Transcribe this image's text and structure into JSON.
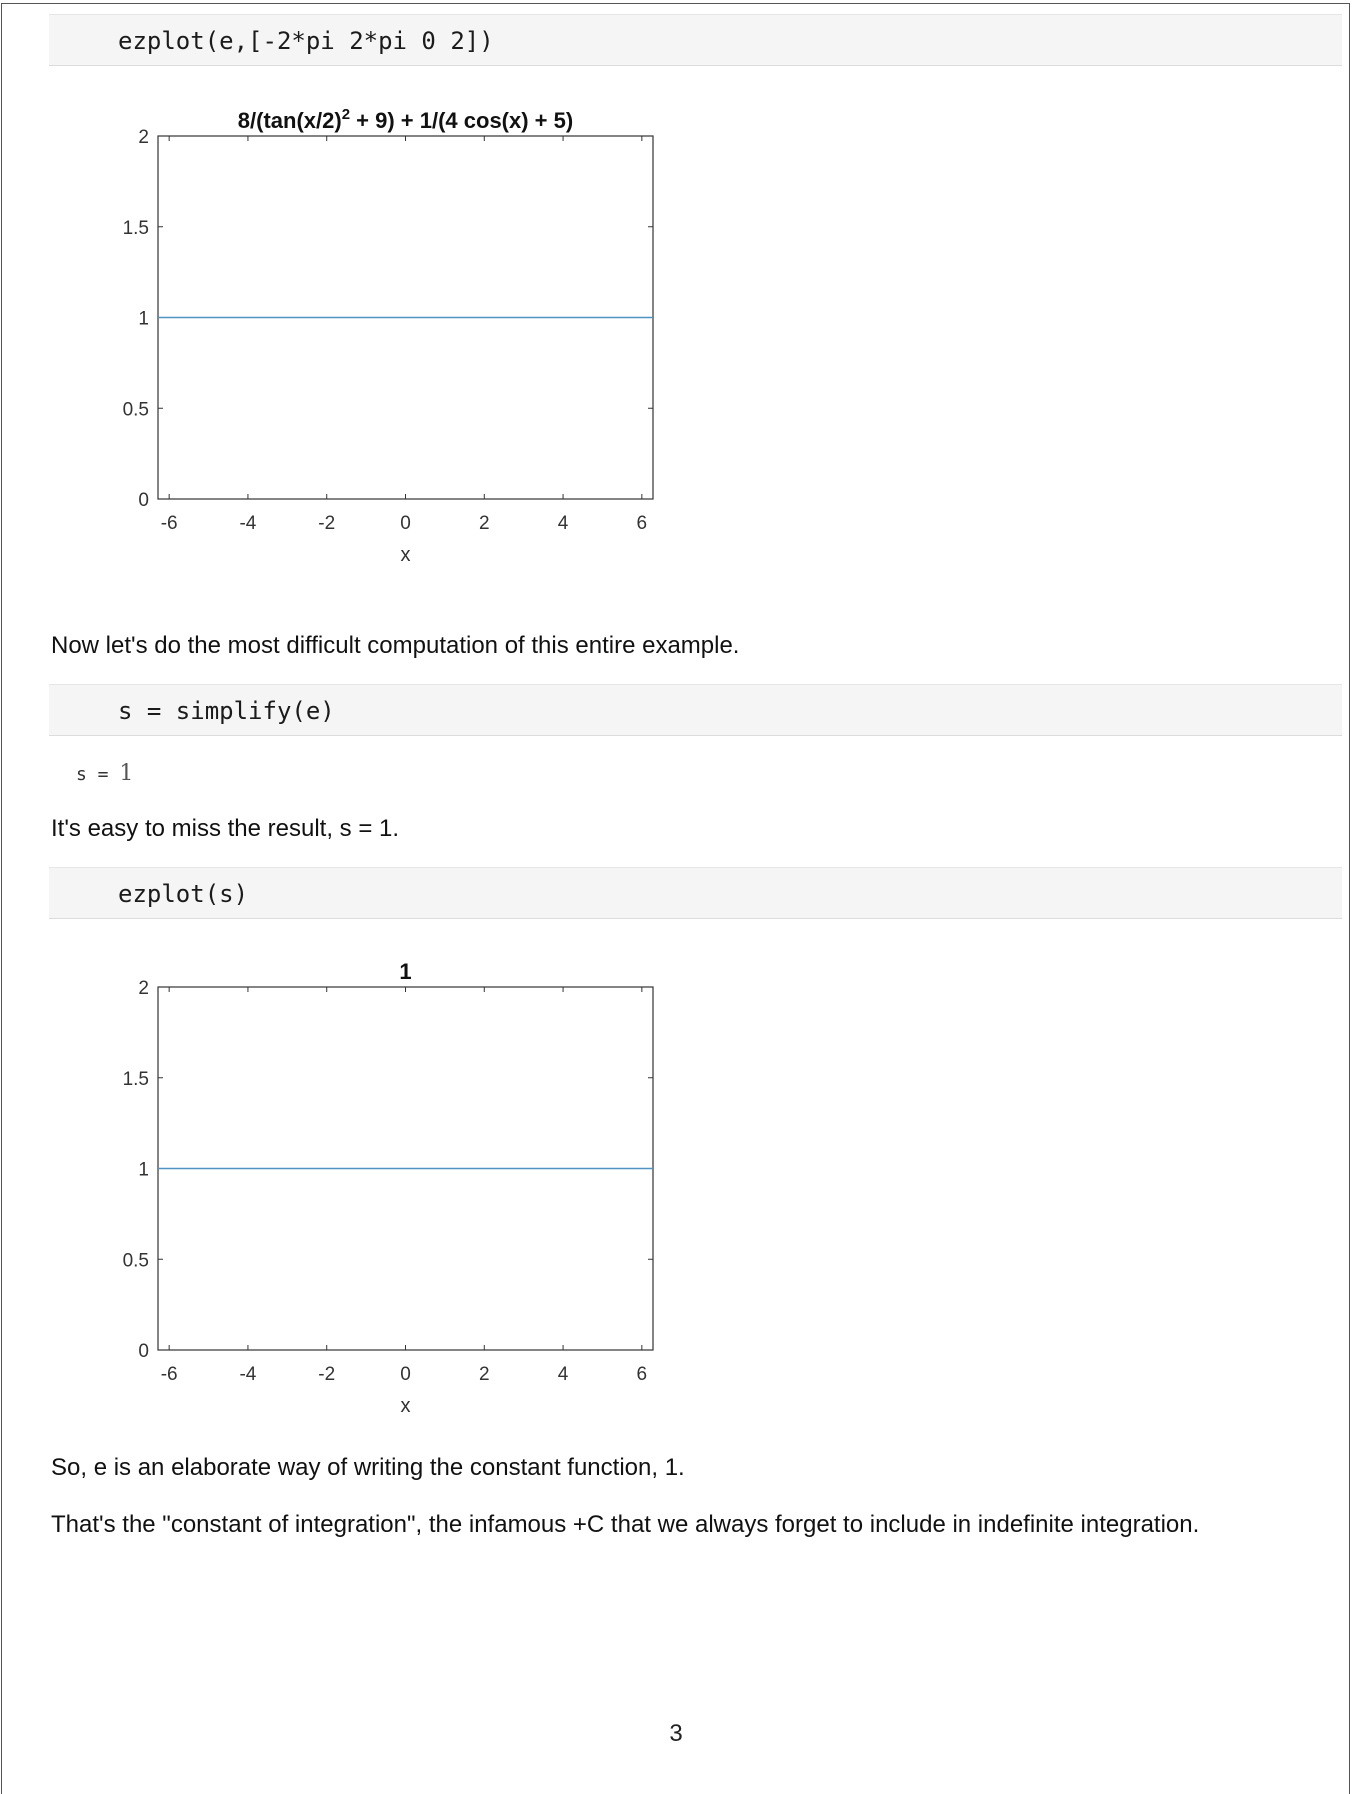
{
  "cells": {
    "code1": "ezplot(e,[-2*pi 2*pi 0 2])",
    "text1": "Now let's do the most difficult computation of this entire example.",
    "code2": "s = simplify(e)",
    "output2_label": "s = ",
    "output2_value": "1",
    "text2": "It's easy to miss the result, s = 1.",
    "code3": "ezplot(s)",
    "text3": "So, e is an elaborate way of writing the constant function, 1.",
    "text4": "That's the \"constant of integration\", the infamous +C that we always forget to include in indefinite integration."
  },
  "page_number": "3",
  "line_color": "#4f93c2",
  "chart_data": [
    {
      "type": "line",
      "title_main": "8/(tan(x/2)",
      "title_sup": "2",
      "title_rest": " + 9) + 1/(4 cos(x) + 5)",
      "xlabel": "x",
      "ylabel": "",
      "xlim": [
        -6.2832,
        6.2832
      ],
      "ylim": [
        0,
        2
      ],
      "xticks": [
        -6,
        -4,
        -2,
        0,
        2,
        4,
        6
      ],
      "xtick_labels": [
        "-6",
        "-4",
        "-2",
        "0",
        "2",
        "4",
        "6"
      ],
      "yticks": [
        0,
        0.5,
        1,
        1.5,
        2
      ],
      "ytick_labels": [
        "0",
        "0.5",
        "1",
        "1.5",
        "2"
      ],
      "grid": false,
      "series": [
        {
          "x": [
            -6.2832,
            6.2832
          ],
          "y": [
            1,
            1
          ]
        }
      ]
    },
    {
      "type": "line",
      "title_main": "1",
      "title_sup": "",
      "title_rest": "",
      "xlabel": "x",
      "ylabel": "",
      "xlim": [
        -6.2832,
        6.2832
      ],
      "ylim": [
        0,
        2
      ],
      "xticks": [
        -6,
        -4,
        -2,
        0,
        2,
        4,
        6
      ],
      "xtick_labels": [
        "-6",
        "-4",
        "-2",
        "0",
        "2",
        "4",
        "6"
      ],
      "yticks": [
        0,
        0.5,
        1,
        1.5,
        2
      ],
      "ytick_labels": [
        "0",
        "0.5",
        "1",
        "1.5",
        "2"
      ],
      "grid": false,
      "series": [
        {
          "x": [
            -6.2832,
            6.2832
          ],
          "y": [
            1,
            1
          ]
        }
      ]
    }
  ]
}
